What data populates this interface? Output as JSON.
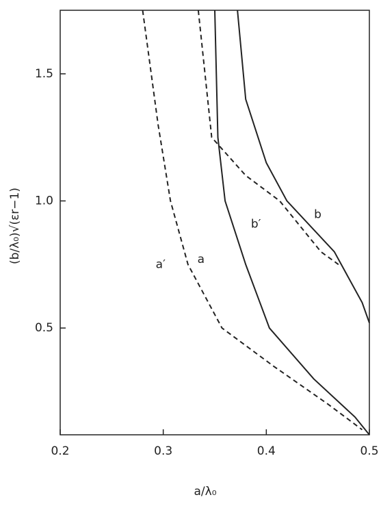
{
  "chart_data": {
    "type": "line",
    "x_label": "a/λ₀",
    "y_label": "(b/λ₀)√(εr−1)",
    "xlim": [
      0.2,
      0.5
    ],
    "ylim": [
      0.08,
      1.75
    ],
    "xticks": [
      0.2,
      0.3,
      0.4,
      0.5
    ],
    "yticks": [
      0.5,
      {
        "value": 1.0,
        "label": "1.0"
      },
      1.5
    ],
    "series": [
      {
        "name": "a′",
        "color": "#222",
        "style": "dashed",
        "x": [
          0.28,
          0.295,
          0.307,
          0.324,
          0.357,
          0.407,
          0.46,
          0.493
        ],
        "values": [
          1.75,
          1.3,
          1.0,
          0.75,
          0.5,
          0.35,
          0.2,
          0.1
        ]
      },
      {
        "name": "a",
        "color": "#222",
        "style": "solid",
        "x": [
          0.35,
          0.353,
          0.36,
          0.38,
          0.403,
          0.446,
          0.486,
          0.5
        ],
        "values": [
          1.75,
          1.25,
          1.0,
          0.75,
          0.5,
          0.3,
          0.15,
          0.08
        ]
      },
      {
        "name": "b′",
        "color": "#222",
        "style": "dashed",
        "x": [
          0.334,
          0.347,
          0.38,
          0.413,
          0.453,
          0.47
        ],
        "values": [
          1.75,
          1.25,
          1.1,
          1.0,
          0.8,
          0.75
        ]
      },
      {
        "name": "b",
        "color": "#222",
        "style": "solid",
        "x": [
          0.372,
          0.38,
          0.4,
          0.42,
          0.466,
          0.493,
          0.5
        ],
        "values": [
          1.75,
          1.4,
          1.15,
          1.0,
          0.8,
          0.6,
          0.52
        ]
      }
    ]
  }
}
